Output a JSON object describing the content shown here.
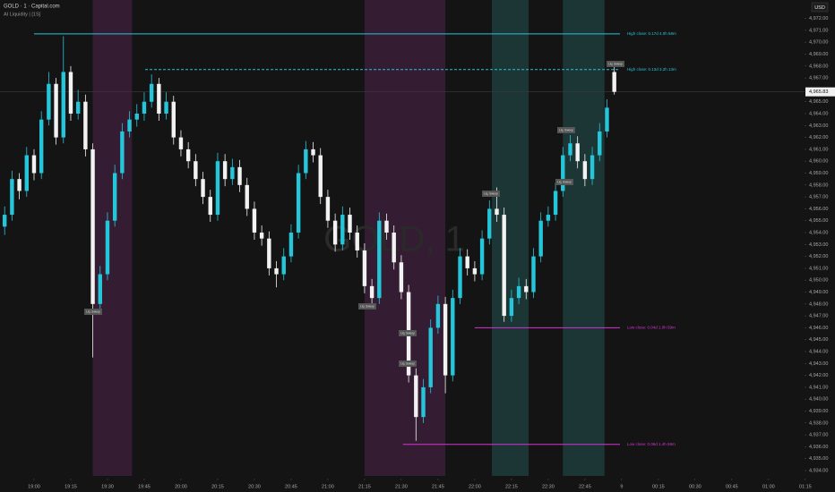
{
  "header": {
    "symbol": "GOLD · 1 · Capital.com",
    "indicator": "AI Liquidity | [1S]",
    "currency": "USD",
    "watermark": "GOLD, 1"
  },
  "chart_data": {
    "type": "candlestick",
    "grid": false,
    "xlim": [
      -13.9,
      314.7
    ],
    "xticks": [
      {
        "value": 0,
        "label": "19:00"
      },
      {
        "value": 15,
        "label": "19:15"
      },
      {
        "value": 30,
        "label": "19:30"
      },
      {
        "value": 45,
        "label": "19:45"
      },
      {
        "value": 60,
        "label": "20:00"
      },
      {
        "value": 75,
        "label": "20:15"
      },
      {
        "value": 90,
        "label": "20:30"
      },
      {
        "value": 105,
        "label": "20:45"
      },
      {
        "value": 120,
        "label": "21:00"
      },
      {
        "value": 135,
        "label": "21:15"
      },
      {
        "value": 150,
        "label": "21:30"
      },
      {
        "value": 165,
        "label": "21:45"
      },
      {
        "value": 180,
        "label": "22:00"
      },
      {
        "value": 195,
        "label": "22:15"
      },
      {
        "value": 210,
        "label": "22:30"
      },
      {
        "value": 225,
        "label": "22:45"
      },
      {
        "value": 240,
        "label": "9"
      },
      {
        "value": 255,
        "label": "00:15"
      },
      {
        "value": 270,
        "label": "00:30"
      },
      {
        "value": 285,
        "label": "00:45"
      },
      {
        "value": 300,
        "label": "01:00"
      },
      {
        "value": 315,
        "label": "01:15"
      }
    ],
    "ylim": [
      4933.55,
      4973.55
    ],
    "yticks": [
      {
        "value": 4934,
        "label": "4,934.00"
      },
      {
        "value": 4935,
        "label": "4,935.00"
      },
      {
        "value": 4936,
        "label": "4,936.00"
      },
      {
        "value": 4937,
        "label": "4,937.00"
      },
      {
        "value": 4938,
        "label": "4,938.00"
      },
      {
        "value": 4939,
        "label": "4,939.00"
      },
      {
        "value": 4940,
        "label": "4,940.00"
      },
      {
        "value": 4941,
        "label": "4,941.00"
      },
      {
        "value": 4942,
        "label": "4,942.00"
      },
      {
        "value": 4943,
        "label": "4,943.00"
      },
      {
        "value": 4944,
        "label": "4,944.00"
      },
      {
        "value": 4945,
        "label": "4,945.00"
      },
      {
        "value": 4946,
        "label": "4,946.00"
      },
      {
        "value": 4947,
        "label": "4,947.00"
      },
      {
        "value": 4948,
        "label": "4,948.00"
      },
      {
        "value": 4949,
        "label": "4,949.00"
      },
      {
        "value": 4950,
        "label": "4,950.00"
      },
      {
        "value": 4951,
        "label": "4,951.00"
      },
      {
        "value": 4952,
        "label": "4,952.00"
      },
      {
        "value": 4953,
        "label": "4,953.00"
      },
      {
        "value": 4954,
        "label": "4,954.00"
      },
      {
        "value": 4955,
        "label": "4,955.00"
      },
      {
        "value": 4956,
        "label": "4,956.00"
      },
      {
        "value": 4957,
        "label": "4,957.00"
      },
      {
        "value": 4958,
        "label": "4,958.00"
      },
      {
        "value": 4959,
        "label": "4,959.00"
      },
      {
        "value": 4960,
        "label": "4,960.00"
      },
      {
        "value": 4961,
        "label": "4,961.00"
      },
      {
        "value": 4962,
        "label": "4,962.00"
      },
      {
        "value": 4963,
        "label": "4,963.00"
      },
      {
        "value": 4964,
        "label": "4,964.00"
      },
      {
        "value": 4965,
        "label": "4,965.00"
      },
      {
        "value": 4967,
        "label": "4,967.00"
      },
      {
        "value": 4968,
        "label": "4,968.00"
      },
      {
        "value": 4969,
        "label": "4,969.00"
      },
      {
        "value": 4970,
        "label": "4,970.00"
      },
      {
        "value": 4971,
        "label": "4,971.00"
      },
      {
        "value": 4972,
        "label": "4,972.00"
      }
    ],
    "last_price": {
      "value": 4965.83,
      "label": "4,965.83"
    },
    "up_color": "#26c6da",
    "down_color": "#f2f2f2",
    "x": [
      -12,
      -9,
      -6,
      -3,
      0,
      3,
      6,
      9,
      12,
      15,
      18,
      21,
      24,
      27,
      30,
      33,
      36,
      39,
      42,
      45,
      48,
      51,
      54,
      57,
      60,
      63,
      66,
      69,
      72,
      75,
      78,
      81,
      84,
      87,
      90,
      93,
      96,
      99,
      102,
      105,
      108,
      111,
      114,
      117,
      120,
      123,
      126,
      129,
      132,
      135,
      138,
      141,
      144,
      147,
      150,
      153,
      156,
      159,
      162,
      165,
      168,
      171,
      174,
      177,
      180,
      183,
      186,
      189,
      192,
      195,
      198,
      201,
      204,
      207,
      210,
      213,
      216,
      219,
      222,
      225,
      228,
      231,
      234,
      237
    ],
    "open": [
      4954.5,
      4955.5,
      4958.5,
      4957.5,
      4960.5,
      4959,
      4963.5,
      4966.5,
      4962,
      4967.5,
      4964,
      4965,
      4961,
      4948,
      4950.5,
      4955,
      4959,
      4962.5,
      4963.5,
      4964,
      4965,
      4966.5,
      4964,
      4965,
      4962,
      4961,
      4960,
      4958.5,
      4957,
      4955.5,
      4960,
      4958.5,
      4959.5,
      4958,
      4956,
      4954,
      4953.5,
      4951,
      4950.5,
      4952,
      4954,
      4959,
      4961,
      4960.5,
      4957,
      4955,
      4953,
      4955.5,
      4954,
      4952.5,
      4949.5,
      4948.5,
      4955,
      4954,
      4951.5,
      4949,
      4942,
      4938.5,
      4941,
      4946,
      4948,
      4942,
      4948.5,
      4952,
      4951,
      4950.5,
      4953.5,
      4956,
      4955.5,
      4947,
      4948.5,
      4949.5,
      4949,
      4952,
      4955,
      4955.5,
      4957.5,
      4960.5,
      4961.5,
      4960,
      4958.5,
      4960.5,
      4962.5,
      4967.5
    ],
    "high": [
      4956.2,
      4959.2,
      4959,
      4961.2,
      4961,
      4964.2,
      4967.5,
      4967,
      4970.5,
      4968,
      4966,
      4965.6,
      4961.5,
      4951.2,
      4955.7,
      4959.7,
      4963.2,
      4964.2,
      4964.8,
      4965.8,
      4967.3,
      4967,
      4965.8,
      4965.5,
      4962.6,
      4961.6,
      4960.6,
      4959.1,
      4957.6,
      4960.7,
      4960.6,
      4960.2,
      4960.1,
      4958.6,
      4956.6,
      4954.6,
      4954.1,
      4951.6,
      4952.7,
      4954.7,
      4959.7,
      4961.7,
      4961.6,
      4961.1,
      4957.6,
      4955.6,
      4956.2,
      4956.1,
      4954.6,
      4953.1,
      4950.1,
      4955.7,
      4955.6,
      4954.6,
      4952.1,
      4949.6,
      4942.6,
      4941.7,
      4946.7,
      4948.7,
      4948.6,
      4949.2,
      4952.7,
      4952.6,
      4951.6,
      4954.2,
      4956.7,
      4957.8,
      4956.1,
      4949.2,
      4950.2,
      4950.1,
      4952.7,
      4955.7,
      4956.2,
      4958.2,
      4961.2,
      4962.2,
      4962.1,
      4960.6,
      4961.2,
      4963.2,
      4965.2,
      4968.2
    ],
    "low": [
      4953.8,
      4955,
      4956.8,
      4957,
      4958.4,
      4958.5,
      4963,
      4961.4,
      4961.5,
      4963.4,
      4963.5,
      4960.4,
      4943.5,
      4947.4,
      4950,
      4954.5,
      4958.5,
      4962,
      4962.9,
      4963.4,
      4964.5,
      4963.4,
      4963.5,
      4961.4,
      4960.4,
      4959.4,
      4957.9,
      4956.4,
      4954.9,
      4955,
      4957.9,
      4958,
      4957.4,
      4955.4,
      4953.4,
      4952.9,
      4950.4,
      4949.4,
      4950,
      4951.5,
      4953.5,
      4958.5,
      4959.9,
      4956.4,
      4954.4,
      4952.4,
      4952.5,
      4953.4,
      4951.9,
      4948.9,
      4947.9,
      4948,
      4953.4,
      4950.9,
      4948.4,
      4941.4,
      4936.5,
      4938,
      4940.5,
      4945.5,
      4940.5,
      4941.5,
      4948,
      4950.4,
      4949.9,
      4950,
      4953,
      4954.9,
      4946.5,
      4946.5,
      4948,
      4948.4,
      4948.5,
      4951.5,
      4954.5,
      4955,
      4957,
      4960,
      4959.4,
      4957.9,
      4958,
      4960,
      4962,
      4965.6
    ],
    "close": [
      4955.5,
      4958.5,
      4957.5,
      4960.5,
      4959,
      4963.5,
      4966.5,
      4962,
      4967.5,
      4964,
      4965,
      4961,
      4948,
      4950.5,
      4955,
      4959,
      4962.5,
      4963.5,
      4964,
      4965,
      4966.5,
      4964,
      4965,
      4962,
      4961,
      4960,
      4958.5,
      4957,
      4955.5,
      4960,
      4958.5,
      4959.5,
      4958,
      4956,
      4954,
      4953.5,
      4951,
      4950.5,
      4952,
      4954,
      4959,
      4961,
      4960.5,
      4957,
      4955,
      4953,
      4955.5,
      4954,
      4952.5,
      4949.5,
      4948.5,
      4955,
      4954,
      4951.5,
      4949,
      4942,
      4938.5,
      4941,
      4946,
      4948,
      4942,
      4948.5,
      4952,
      4951,
      4950.5,
      4953.5,
      4956,
      4955.5,
      4947,
      4948.5,
      4949.5,
      4949,
      4952,
      4955,
      4955.5,
      4957.5,
      4960.5,
      4961.5,
      4960,
      4958.5,
      4960.5,
      4962.5,
      4964.5,
      4965.83
    ],
    "sessions": [
      {
        "start": 24,
        "end": 40,
        "color": "#3a1f38"
      },
      {
        "start": 135,
        "end": 168,
        "color": "#3a1f38"
      },
      {
        "start": 187,
        "end": 202,
        "color": "#1d3b3b"
      },
      {
        "start": 216,
        "end": 233,
        "color": "#1d3b3b"
      }
    ],
    "levels": [
      {
        "label": "High close: 0.17d 4.0h 58m",
        "value": 4970.7,
        "start": 0,
        "end": 239.3,
        "color": "#26c6da",
        "dashed": false
      },
      {
        "label": "High close: 0.13d 3.2h 13m",
        "value": 4967.7,
        "start": 45.4,
        "end": 239.3,
        "color": "#26c6da",
        "dashed": true
      },
      {
        "label": "Low close: 0.04d 1.0h 59m",
        "value": 4946,
        "start": 180,
        "end": 239.3,
        "color": "#d633d6",
        "dashed": false
      },
      {
        "label": "Low close: 0.06d 1.4h 59m",
        "value": 4936.2,
        "start": 150.7,
        "end": 239.3,
        "color": "#d633d6",
        "dashed": false
      }
    ],
    "annotations": [
      "Liq. Sweep",
      "Liq. Sweep",
      "Liq. Sweep",
      "Liq. Sweep",
      "Liq. Sweep",
      "Liq. Sweep",
      "Liq. Sweep",
      "Liq. Sweep"
    ]
  }
}
